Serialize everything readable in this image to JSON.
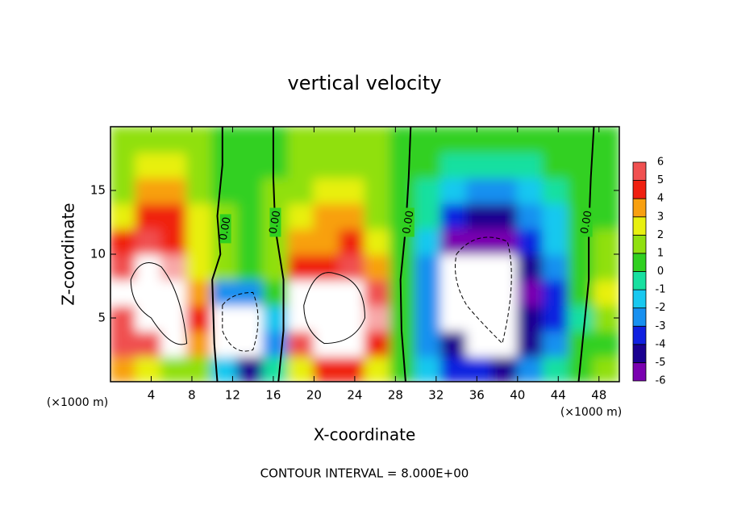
{
  "chart_data": {
    "type": "heatmap",
    "title": "vertical velocity",
    "xlabel": "X-coordinate",
    "ylabel": "Z-coordinate",
    "x_unit": "(×1000 m)",
    "y_unit": "(×1000 m)",
    "footer": "CONTOUR INTERVAL = 8.000E+00",
    "zero_contour_label": "0.00",
    "contour_levels": [
      -8,
      0,
      8
    ],
    "xlim": [
      0,
      50
    ],
    "ylim": [
      0,
      20
    ],
    "xticks": [
      4,
      8,
      12,
      16,
      20,
      24,
      28,
      32,
      36,
      40,
      44,
      48
    ],
    "yticks": [
      5,
      10,
      15
    ],
    "clim": [
      -6,
      6
    ],
    "colorbar_ticks": [
      -6,
      -5,
      -4,
      -3,
      -2,
      -1,
      0,
      1,
      2,
      3,
      4,
      5,
      6
    ],
    "colors": [
      "#7a00b0",
      "#1a0090",
      "#1020e0",
      "#1890f0",
      "#18c8f0",
      "#18e0a0",
      "#30d020",
      "#90e010",
      "#e8f010",
      "#f8a010",
      "#f02010",
      "#f05050",
      "#f8a8a8"
    ],
    "x": [
      1.25,
      3.75,
      6.25,
      8.75,
      11.25,
      13.75,
      16.25,
      18.75,
      21.25,
      23.75,
      26.25,
      28.75,
      31.25,
      33.75,
      36.25,
      38.75,
      41.25,
      43.75,
      46.25,
      48.75
    ],
    "y": [
      1,
      3,
      5,
      7,
      9,
      11,
      13,
      15,
      17,
      19
    ],
    "values": [
      [
        3,
        2,
        1,
        1,
        -2,
        -5,
        -1,
        2,
        4,
        4,
        2,
        0,
        -2,
        -4,
        -4,
        -5,
        -3,
        -1,
        0,
        1
      ],
      [
        5,
        5,
        8,
        3,
        -8,
        -8,
        -3,
        5,
        8,
        8,
        4,
        0,
        -3,
        -5,
        -8,
        -8,
        -5,
        -3,
        0,
        0
      ],
      [
        5,
        8,
        8,
        4,
        -8,
        -8,
        -2,
        8,
        8,
        8,
        6,
        0,
        -3,
        -8,
        -8,
        -8,
        -5,
        -4,
        -1,
        1
      ],
      [
        8,
        8,
        8,
        3,
        -3,
        -3,
        0,
        8,
        8,
        8,
        5,
        0,
        -3,
        -8,
        -8,
        -8,
        -6,
        -4,
        0,
        2
      ],
      [
        5,
        8,
        6,
        2,
        1,
        0,
        1,
        4,
        4,
        5,
        3,
        0,
        -3,
        -8,
        -8,
        -8,
        -5,
        -3,
        0,
        1
      ],
      [
        4,
        5,
        4,
        2,
        1,
        0,
        1,
        3,
        3,
        4,
        2,
        0,
        -2,
        -6,
        -6,
        -6,
        -4,
        -2,
        0,
        1
      ],
      [
        2,
        4,
        4,
        2,
        1,
        0,
        1,
        2,
        3,
        3,
        1,
        0,
        -1,
        -4,
        -5,
        -5,
        -3,
        -2,
        0,
        0
      ],
      [
        1,
        3,
        3,
        1,
        0,
        0,
        1,
        1,
        2,
        2,
        1,
        0,
        -1,
        -2,
        -3,
        -3,
        -2,
        -1,
        0,
        0
      ],
      [
        1,
        2,
        2,
        1,
        0,
        0,
        0,
        1,
        1,
        1,
        1,
        0,
        0,
        -1,
        -1,
        -1,
        -1,
        0,
        0,
        0
      ],
      [
        1,
        1,
        1,
        1,
        0,
        0,
        0,
        1,
        1,
        1,
        1,
        0,
        0,
        0,
        0,
        0,
        0,
        0,
        0,
        0
      ]
    ]
  }
}
